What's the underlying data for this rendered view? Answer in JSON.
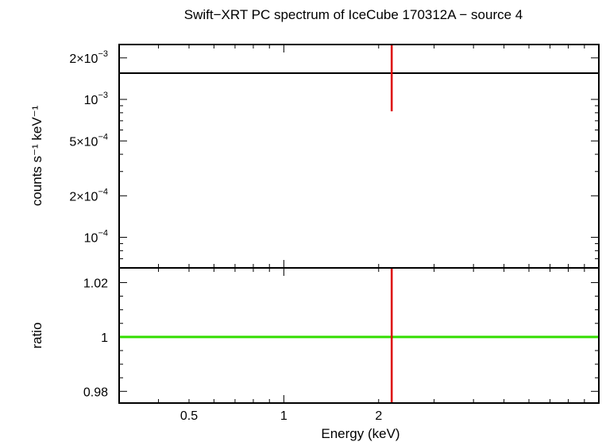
{
  "chart_data": [
    {
      "panel": "spectrum",
      "type": "scatter",
      "title": "Swift−XRT PC spectrum of IceCube 170312A − source 4",
      "ylabel": "counts s⁻¹ keV⁻¹",
      "yscale": "log",
      "xscale": "log",
      "xlim": [
        0.3,
        10
      ],
      "ylim": [
        6e-05,
        0.0025
      ],
      "yticks": [
        {
          "value": 0.002,
          "mantissa": "2×10",
          "exp": "−3"
        },
        {
          "value": 0.001,
          "mantissa": "10",
          "exp": "−3"
        },
        {
          "value": 0.0005,
          "mantissa": "5×10",
          "exp": "−4"
        },
        {
          "value": 0.0002,
          "mantissa": "2×10",
          "exp": "−4"
        },
        {
          "value": 0.0001,
          "mantissa": "10",
          "exp": "−4"
        }
      ],
      "model_value": 0.00155,
      "data_points": [
        {
          "x": 2.2,
          "y": 0.00155,
          "y_low": 0.00082,
          "y_high": 0.0025
        }
      ],
      "model_color": "#000000",
      "data_color": "#dd0000"
    },
    {
      "panel": "ratio",
      "type": "scatter",
      "xlabel": "Energy (keV)",
      "ylabel": "ratio",
      "xscale": "log",
      "xlim": [
        0.3,
        10
      ],
      "ylim": [
        0.9757,
        1.0254
      ],
      "yticks": [
        {
          "value": 1.02,
          "label": "1.02"
        },
        {
          "value": 1.0,
          "label": "1"
        },
        {
          "value": 0.98,
          "label": "0.98"
        }
      ],
      "xticks": [
        {
          "value": 0.5,
          "label": "0.5"
        },
        {
          "value": 1,
          "label": "1"
        },
        {
          "value": 2,
          "label": "2"
        }
      ],
      "reference_value": 1.0,
      "data_points": [
        {
          "x": 2.2,
          "y": 1.0,
          "y_low": 0.9757,
          "y_high": 1.0254
        }
      ],
      "reference_color": "#33dd00",
      "data_color": "#dd0000"
    }
  ]
}
